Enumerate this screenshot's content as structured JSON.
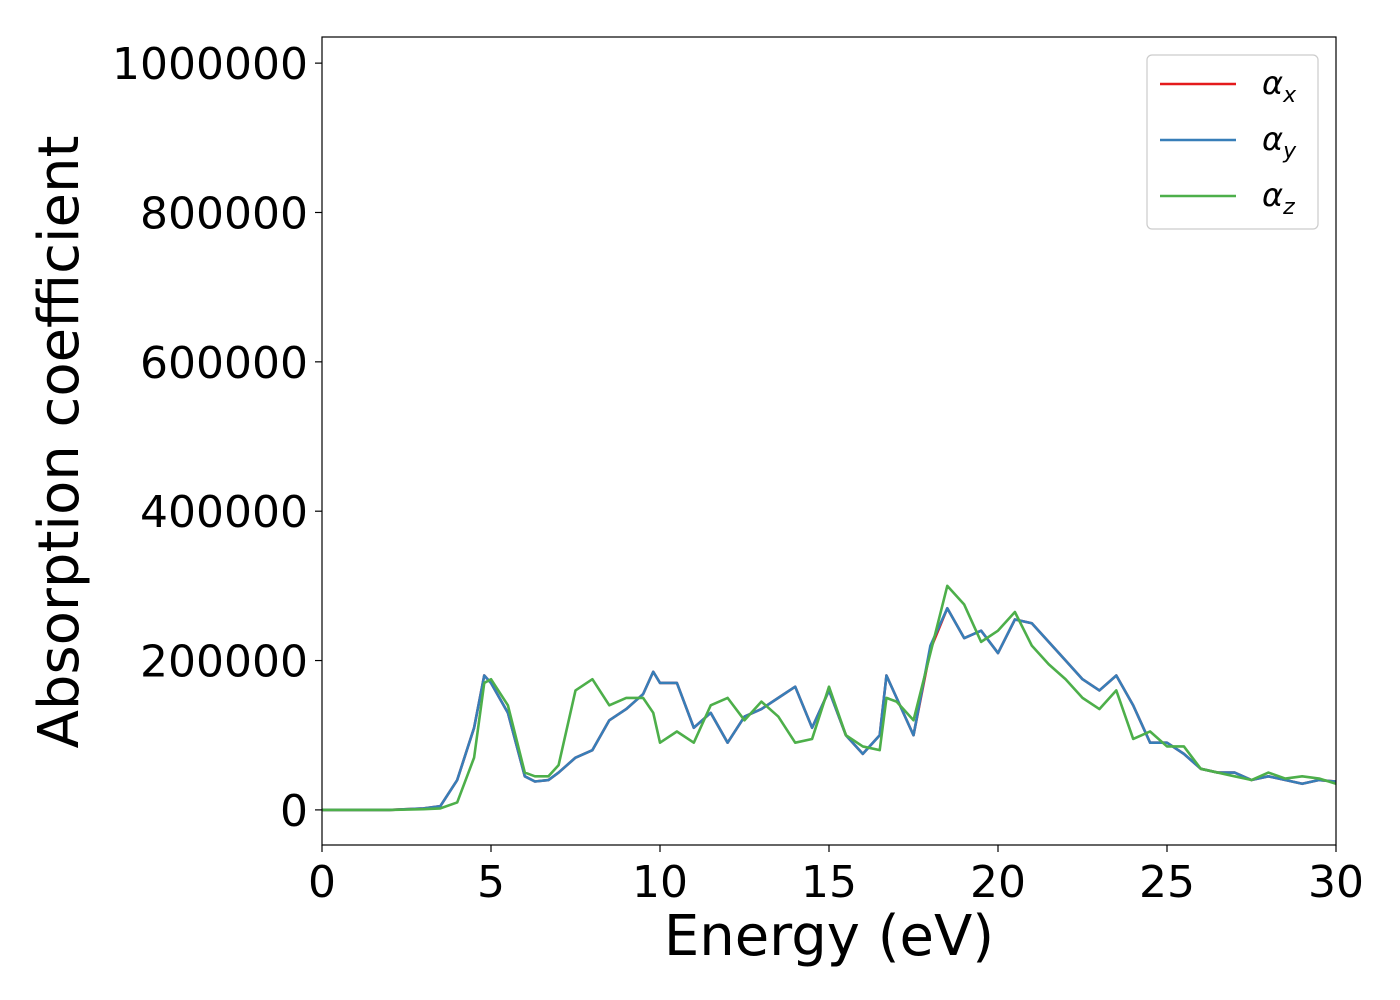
{
  "chart_data": {
    "type": "line",
    "xlabel": "Energy (eV)",
    "ylabel": "Absorption coefficient",
    "x": [
      0,
      1,
      2,
      3,
      3.5,
      4,
      4.5,
      4.8,
      5,
      5.5,
      6,
      6.3,
      6.7,
      7,
      7.5,
      8,
      8.5,
      9,
      9.5,
      9.8,
      10,
      10.5,
      11,
      11.5,
      12,
      12.5,
      13,
      13.5,
      14,
      14.5,
      15,
      15.5,
      16,
      16.5,
      16.7,
      17,
      17.5,
      18,
      18.5,
      19,
      19.5,
      20,
      20.5,
      21,
      21.5,
      22,
      22.5,
      23,
      23.5,
      24,
      24.5,
      25,
      25.5,
      26,
      26.5,
      27,
      27.5,
      28,
      28.5,
      29,
      29.5,
      30
    ],
    "series": [
      {
        "name": "αx",
        "color": "#e41a1c",
        "values": [
          0,
          0,
          0,
          2000,
          5000,
          40000,
          110000,
          180000,
          170000,
          130000,
          45000,
          38000,
          40000,
          50000,
          70000,
          80000,
          120000,
          135000,
          155000,
          185000,
          170000,
          170000,
          110000,
          130000,
          90000,
          125000,
          135000,
          150000,
          165000,
          110000,
          160000,
          100000,
          75000,
          100000,
          180000,
          150000,
          100000,
          215000,
          270000,
          230000,
          240000,
          210000,
          255000,
          250000,
          225000,
          200000,
          175000,
          160000,
          180000,
          140000,
          90000,
          90000,
          75000,
          55000,
          50000,
          50000,
          40000,
          45000,
          40000,
          35000,
          40000,
          38000
        ]
      },
      {
        "name": "αy",
        "color": "#377eb8",
        "values": [
          0,
          0,
          0,
          2000,
          5000,
          40000,
          110000,
          180000,
          170000,
          130000,
          45000,
          38000,
          40000,
          50000,
          70000,
          80000,
          120000,
          135000,
          155000,
          185000,
          170000,
          170000,
          110000,
          130000,
          90000,
          125000,
          135000,
          150000,
          165000,
          110000,
          160000,
          100000,
          75000,
          100000,
          180000,
          150000,
          100000,
          220000,
          270000,
          230000,
          240000,
          210000,
          255000,
          250000,
          225000,
          200000,
          175000,
          160000,
          180000,
          140000,
          90000,
          90000,
          75000,
          55000,
          50000,
          50000,
          40000,
          45000,
          40000,
          35000,
          40000,
          38000
        ]
      },
      {
        "name": "αz",
        "color": "#4daf4a",
        "values": [
          0,
          0,
          0,
          1000,
          2000,
          10000,
          70000,
          170000,
          175000,
          140000,
          50000,
          45000,
          45000,
          60000,
          160000,
          175000,
          140000,
          150000,
          150000,
          130000,
          90000,
          105000,
          90000,
          140000,
          150000,
          120000,
          145000,
          125000,
          90000,
          95000,
          165000,
          100000,
          85000,
          80000,
          150000,
          145000,
          120000,
          210000,
          300000,
          275000,
          225000,
          240000,
          265000,
          220000,
          195000,
          175000,
          150000,
          135000,
          160000,
          95000,
          105000,
          85000,
          85000,
          55000,
          50000,
          45000,
          40000,
          50000,
          42000,
          45000,
          42000,
          35000
        ]
      }
    ],
    "xlim": [
      0,
      30
    ],
    "xticks": [
      0,
      5,
      10,
      15,
      20,
      25,
      30
    ],
    "ylim": [
      -47000,
      1035000
    ],
    "yticks": [
      0,
      200000,
      400000,
      600000,
      800000,
      1000000
    ],
    "legend": "upper right",
    "grid": false
  }
}
